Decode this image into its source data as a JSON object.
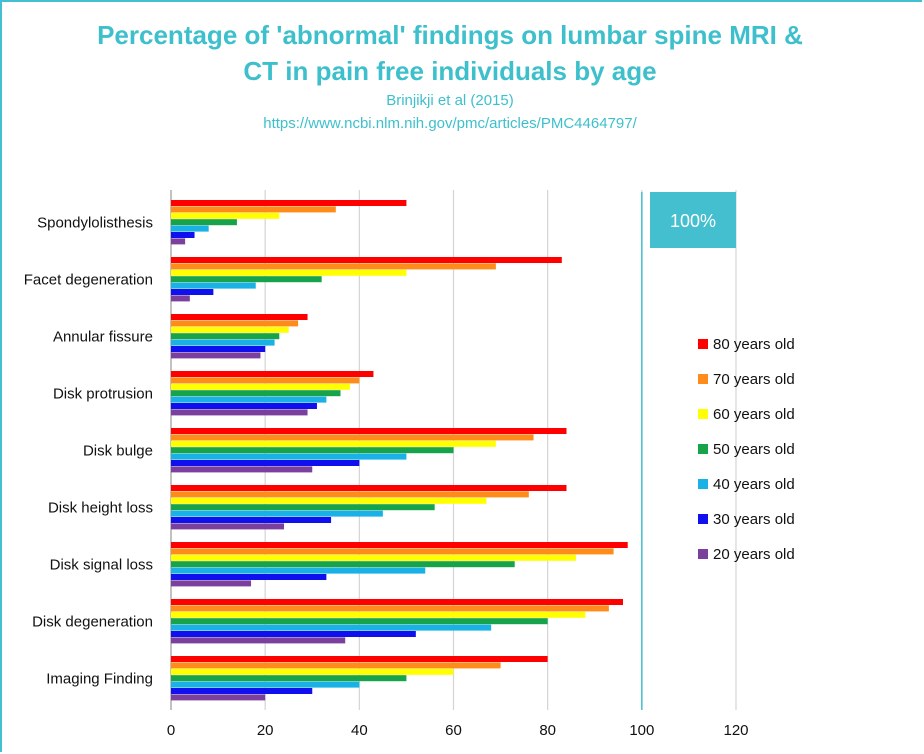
{
  "title_line1": "Percentage of 'abnormal' findings on lumbar spine MRI &",
  "title_line2": "CT in pain free individuals by age",
  "citation": "Brinjikji et al (2015)",
  "url": "https://www.ncbi.nlm.nih.gov/pmc/articles/PMC4464797/",
  "colors": {
    "accent": "#44bfcf",
    "80 years old": "#ff0000",
    "70 years old": "#ff8c1a",
    "60 years old": "#ffff00",
    "50 years old": "#16a34a",
    "40 years old": "#1ab2e6",
    "30 years old": "#1010ee",
    "20 years old": "#7b3f9e"
  },
  "callout": {
    "label": "100%",
    "value": 100
  },
  "chart_data": {
    "type": "bar",
    "orientation": "horizontal",
    "categories": [
      "Spondylolisthesis",
      "Facet degeneration",
      "Annular fissure",
      "Disk protrusion",
      "Disk bulge",
      "Disk height loss",
      "Disk signal loss",
      "Disk degeneration",
      "Imaging Finding"
    ],
    "xlim": [
      0,
      120
    ],
    "xticks": [
      0,
      20,
      40,
      60,
      80,
      100,
      120
    ],
    "grid": "vertical",
    "legend_position": "right",
    "series": [
      {
        "name": "80 years old",
        "values": [
          50,
          83,
          29,
          43,
          84,
          84,
          97,
          96,
          80
        ]
      },
      {
        "name": "70 years old",
        "values": [
          35,
          69,
          27,
          40,
          77,
          76,
          94,
          93,
          70
        ]
      },
      {
        "name": "60 years old",
        "values": [
          23,
          50,
          25,
          38,
          69,
          67,
          86,
          88,
          60
        ]
      },
      {
        "name": "50 years old",
        "values": [
          14,
          32,
          23,
          36,
          60,
          56,
          73,
          80,
          50
        ]
      },
      {
        "name": "40 years old",
        "values": [
          8,
          18,
          22,
          33,
          50,
          45,
          54,
          68,
          40
        ]
      },
      {
        "name": "30 years old",
        "values": [
          5,
          9,
          20,
          31,
          40,
          34,
          33,
          52,
          30
        ]
      },
      {
        "name": "20 years old",
        "values": [
          3,
          4,
          19,
          29,
          30,
          24,
          17,
          37,
          20
        ]
      }
    ]
  }
}
